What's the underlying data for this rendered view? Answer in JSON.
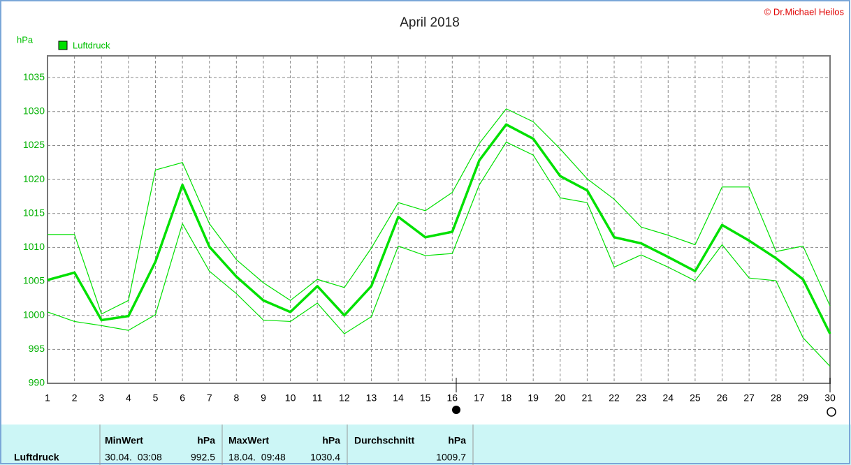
{
  "chart_data": {
    "type": "line",
    "title": "April 2018",
    "copyright": "© Dr.Michael Heilos",
    "y_label": "hPa",
    "categories": [
      "1",
      "2",
      "3",
      "4",
      "5",
      "6",
      "7",
      "8",
      "9",
      "10",
      "11",
      "12",
      "13",
      "14",
      "15",
      "16",
      "17",
      "18",
      "19",
      "20",
      "21",
      "22",
      "23",
      "24",
      "25",
      "26",
      "27",
      "28",
      "29",
      "30"
    ],
    "series": [
      {
        "name": "Luftdruck",
        "color": "#00e000",
        "values": [
          1005.2,
          1006.3,
          999.3,
          999.9,
          1007.9,
          1019.2,
          1010.1,
          1005.7,
          1002.2,
          1000.5,
          1004.3,
          1000.0,
          1004.3,
          1014.5,
          1011.5,
          1012.3,
          1022.8,
          1028.1,
          1026.0,
          1020.5,
          1018.4,
          1011.5,
          1010.6,
          1008.6,
          1006.5,
          1013.3,
          1011.0,
          1008.4,
          1005.3,
          997.3
        ]
      },
      {
        "color": "#00e000",
        "values": [
          1011.9,
          1011.9,
          1000.2,
          1002.2,
          1021.4,
          1022.5,
          1013.5,
          1008.2,
          1004.8,
          1002.2,
          1005.3,
          1004.1,
          1009.9,
          1016.6,
          1015.4,
          1018.1,
          1025.3,
          1030.4,
          1028.5,
          1024.5,
          1020.1,
          1017.1,
          1013.0,
          1011.8,
          1010.4,
          1018.9,
          1018.9,
          1009.4,
          1010.2,
          1001.4
        ]
      },
      {
        "color": "#00e000",
        "values": [
          1000.5,
          999.1,
          998.5,
          997.8,
          1000.1,
          1013.5,
          1006.5,
          1003.2,
          999.3,
          999.1,
          1001.8,
          997.3,
          999.8,
          1010.2,
          1008.8,
          1009.1,
          1019.2,
          1025.5,
          1023.6,
          1017.3,
          1016.6,
          1007.1,
          1008.9,
          1007.1,
          1005.1,
          1010.4,
          1005.5,
          1005.1,
          996.7,
          992.5
        ]
      }
    ],
    "ylim": [
      990,
      1038.2
    ],
    "yticks": [
      990,
      995,
      1000,
      1005,
      1010,
      1015,
      1020,
      1025,
      1030,
      1035
    ],
    "grid": true
  },
  "table": {
    "header": [
      "MinWert",
      "hPa",
      "MaxWert",
      "hPa",
      "Durchschnitt",
      "hPa"
    ],
    "rows": [
      [
        "Luftdruck",
        "30.04.  03:08",
        "992.5",
        "18.04.  09:48",
        "1030.4",
        "1009.7"
      ]
    ]
  }
}
